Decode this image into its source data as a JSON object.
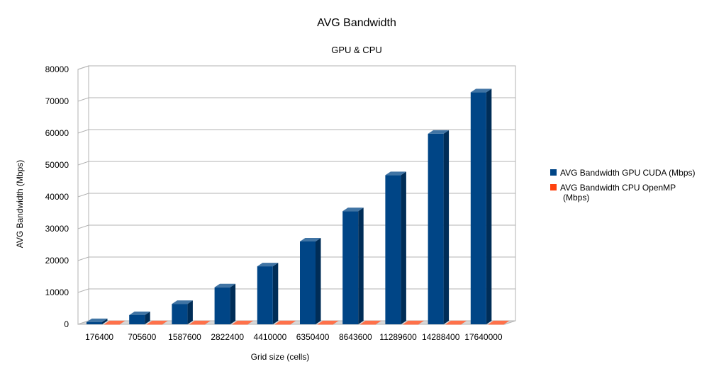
{
  "chart_data": {
    "type": "bar",
    "style": "3d-clustered",
    "title": "AVG Bandwidth",
    "subtitle": "GPU & CPU",
    "xlabel": "Grid size (cells)",
    "ylabel": "AVG Bandwidth (Mbps)",
    "ylim": [
      0,
      80000
    ],
    "yticks": [
      0,
      10000,
      20000,
      30000,
      40000,
      50000,
      60000,
      70000,
      80000
    ],
    "grid": true,
    "legend_position": "right",
    "categories": [
      "176400",
      "705600",
      "1587600",
      "2822400",
      "4410000",
      "6350400",
      "8643600",
      "11289600",
      "14288400",
      "17640000"
    ],
    "series": [
      {
        "name": "AVG Bandwidth GPU CUDA (Mbps)",
        "color": "#004586",
        "values": [
          700,
          2900,
          6400,
          11600,
          18200,
          26000,
          35500,
          46800,
          59800,
          72800
        ]
      },
      {
        "name": "AVG Bandwidth CPU OpenMP (Mbps)",
        "color": "#ff420e",
        "values": [
          30,
          30,
          30,
          30,
          30,
          30,
          30,
          30,
          30,
          30
        ]
      }
    ]
  }
}
